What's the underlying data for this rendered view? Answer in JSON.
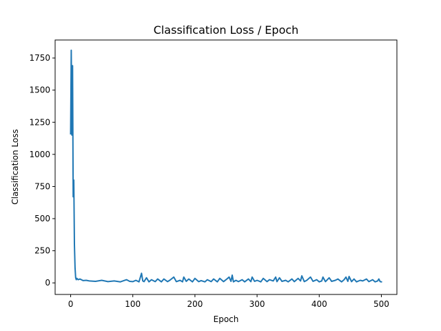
{
  "chart_data": {
    "type": "line",
    "title": "Classification Loss / Epoch",
    "xlabel": "Epoch",
    "ylabel": "Classification Loss",
    "xlim": [
      -25,
      525
    ],
    "ylim": [
      -90,
      1890
    ],
    "xticks": [
      0,
      100,
      200,
      300,
      400,
      500
    ],
    "yticks": [
      0,
      250,
      500,
      750,
      1000,
      1250,
      1500,
      1750
    ],
    "grid": false,
    "line_color": "#1f77b4",
    "series": [
      {
        "x": [
          0,
          1,
          2,
          3,
          4,
          5,
          6,
          7,
          8,
          9,
          10,
          12,
          15,
          20,
          25,
          30,
          40,
          50,
          60,
          70,
          80,
          90,
          95,
          100,
          105,
          110,
          114,
          116,
          118,
          122,
          126,
          130,
          136,
          140,
          146,
          150,
          156,
          160,
          166,
          170,
          176,
          180,
          182,
          186,
          190,
          196,
          200,
          206,
          210,
          216,
          220,
          226,
          230,
          236,
          240,
          246,
          250,
          255,
          258,
          260,
          262,
          266,
          270,
          276,
          280,
          286,
          290,
          292,
          296,
          300,
          306,
          310,
          316,
          320,
          326,
          330,
          332,
          336,
          340,
          346,
          350,
          356,
          360,
          366,
          370,
          372,
          376,
          380,
          386,
          390,
          396,
          400,
          404,
          406,
          410,
          416,
          420,
          426,
          430,
          436,
          440,
          443,
          446,
          448,
          452,
          456,
          460,
          466,
          470,
          476,
          480,
          486,
          490,
          494,
          496,
          498,
          500
        ],
        "values": [
          1160,
          1810,
          1150,
          1690,
          670,
          800,
          300,
          120,
          40,
          25,
          35,
          25,
          30,
          18,
          20,
          15,
          12,
          20,
          10,
          15,
          8,
          25,
          12,
          10,
          20,
          8,
          75,
          15,
          10,
          40,
          8,
          25,
          10,
          30,
          8,
          30,
          10,
          22,
          45,
          10,
          20,
          8,
          45,
          12,
          30,
          8,
          35,
          10,
          18,
          8,
          25,
          10,
          30,
          8,
          35,
          10,
          25,
          45,
          12,
          60,
          8,
          20,
          10,
          25,
          8,
          30,
          10,
          45,
          12,
          20,
          8,
          35,
          10,
          25,
          15,
          45,
          10,
          40,
          12,
          20,
          8,
          30,
          10,
          35,
          15,
          55,
          10,
          20,
          45,
          12,
          25,
          8,
          15,
          45,
          10,
          40,
          12,
          20,
          30,
          8,
          25,
          45,
          12,
          50,
          10,
          30,
          8,
          20,
          15,
          30,
          10,
          25,
          8,
          15,
          30,
          10,
          8
        ]
      }
    ]
  }
}
